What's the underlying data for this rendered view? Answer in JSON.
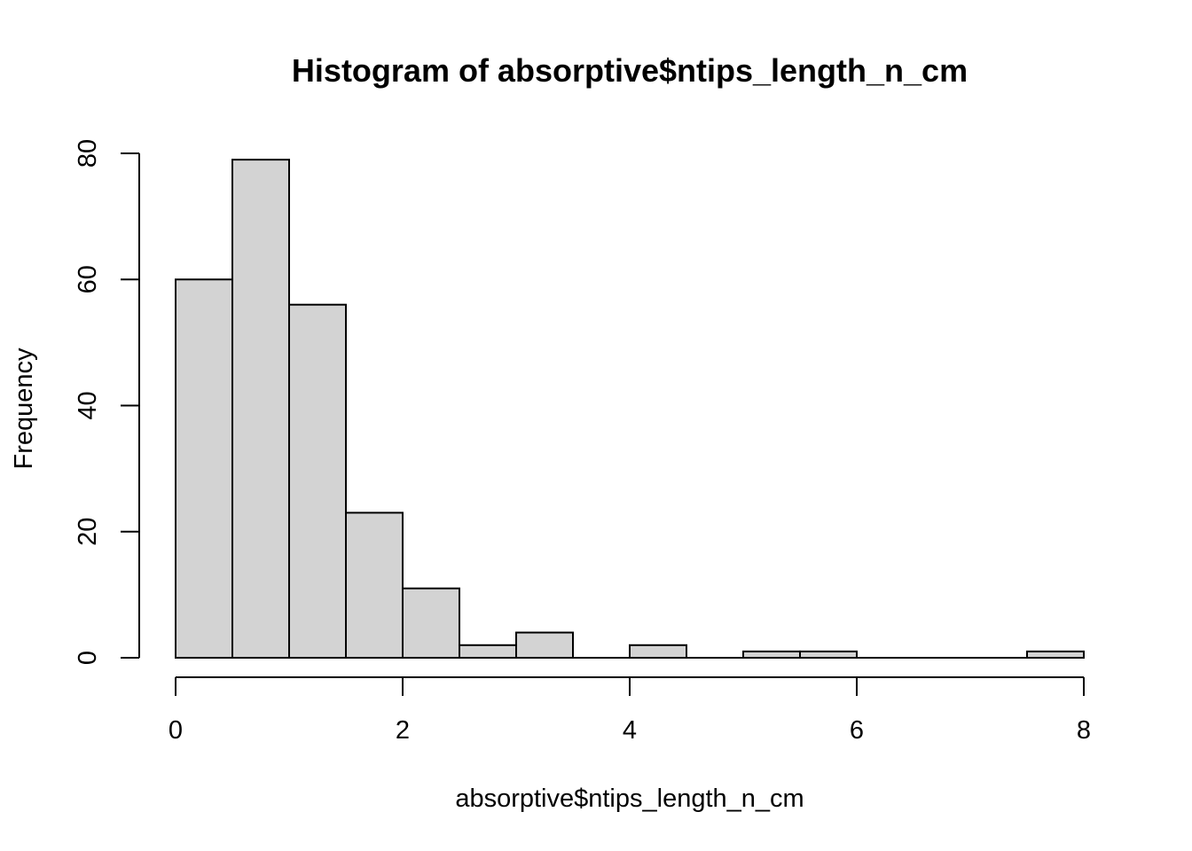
{
  "chart_data": {
    "type": "bar",
    "title": "Histogram of absorptive$ntips_length_n_cm",
    "xlabel": "absorptive$ntips_length_n_cm",
    "ylabel": "Frequency",
    "bins": [
      {
        "x0": 0.0,
        "x1": 0.5,
        "count": 60
      },
      {
        "x0": 0.5,
        "x1": 1.0,
        "count": 79
      },
      {
        "x0": 1.0,
        "x1": 1.5,
        "count": 56
      },
      {
        "x0": 1.5,
        "x1": 2.0,
        "count": 23
      },
      {
        "x0": 2.0,
        "x1": 2.5,
        "count": 11
      },
      {
        "x0": 2.5,
        "x1": 3.0,
        "count": 2
      },
      {
        "x0": 3.0,
        "x1": 3.5,
        "count": 4
      },
      {
        "x0": 3.5,
        "x1": 4.0,
        "count": 0
      },
      {
        "x0": 4.0,
        "x1": 4.5,
        "count": 2
      },
      {
        "x0": 4.5,
        "x1": 5.0,
        "count": 0
      },
      {
        "x0": 5.0,
        "x1": 5.5,
        "count": 1
      },
      {
        "x0": 5.5,
        "x1": 6.0,
        "count": 1
      },
      {
        "x0": 6.0,
        "x1": 6.5,
        "count": 0
      },
      {
        "x0": 6.5,
        "x1": 7.0,
        "count": 0
      },
      {
        "x0": 7.0,
        "x1": 7.5,
        "count": 0
      },
      {
        "x0": 7.5,
        "x1": 8.0,
        "count": 1
      }
    ],
    "xlim": [
      0,
      8
    ],
    "ylim": [
      0,
      80
    ],
    "x_ticks": [
      "0",
      "2",
      "4",
      "6",
      "8"
    ],
    "y_ticks": [
      "0",
      "20",
      "40",
      "60",
      "80"
    ],
    "bar_color": "#d3d3d3",
    "grid": false
  }
}
